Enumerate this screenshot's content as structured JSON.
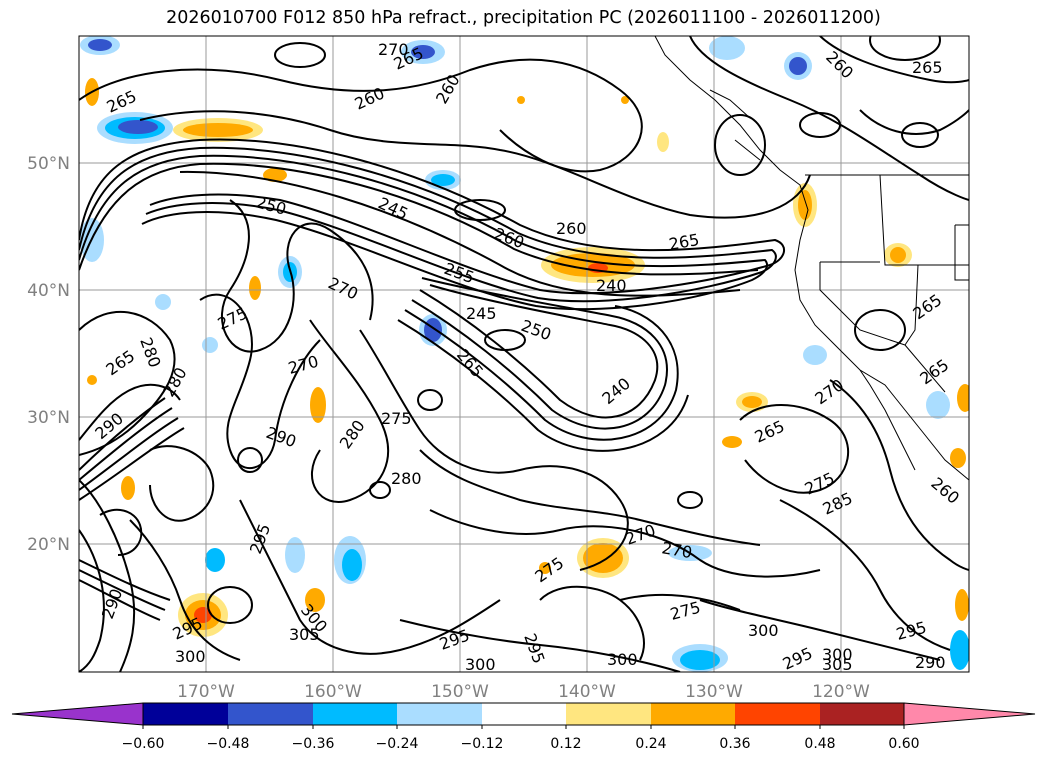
{
  "title": "2026010700 F012 850 hPa refract., precipitation PC (2026011100 - 2026011200)",
  "lat_labels": [
    "50°N",
    "40°N",
    "30°N",
    "20°N"
  ],
  "lon_labels": [
    "170°W",
    "160°W",
    "150°W",
    "140°W",
    "130°W",
    "120°W"
  ],
  "colorbar": {
    "ticks": [
      "−0.60",
      "−0.48",
      "−0.36",
      "−0.24",
      "−0.12",
      "0.12",
      "0.24",
      "0.36",
      "0.48",
      "0.60"
    ],
    "colors": [
      "#9933cc",
      "#000099",
      "#3355cc",
      "#00bbff",
      "#aaddff",
      "#ffffff",
      "#ffe680",
      "#ffaa00",
      "#ff4400",
      "#aa2222",
      "#ff88aa"
    ]
  },
  "contour_labels": {
    "c1": "270",
    "c2": "265",
    "c3": "260",
    "c4": "260",
    "c5": "265",
    "c6": "260",
    "c7": "265",
    "c8": "250",
    "c9": "245",
    "c10": "260",
    "c11": "260",
    "c12": "265",
    "c13": "255",
    "c14": "240",
    "c15": "270",
    "c16": "275",
    "c17": "245",
    "c18": "250",
    "c19": "265",
    "c20": "265",
    "c21": "280",
    "c22": "265",
    "c23": "270",
    "c24": "240",
    "c25": "275",
    "c26": "280",
    "c27": "270",
    "c28": "265",
    "c29": "265",
    "c30": "290",
    "c31": "280",
    "c32": "280",
    "c33": "290",
    "c34": "275",
    "c35": "285",
    "c36": "260",
    "c37": "295",
    "c38": "270",
    "c39": "270",
    "c40": "275",
    "c41": "275",
    "c42": "295",
    "c43": "300",
    "c44": "295",
    "c45": "300",
    "c46": "300",
    "c47": "300",
    "c48": "295",
    "c49": "300",
    "c50": "305",
    "c51": "295",
    "c52": "290",
    "c53": "305",
    "c54": "295",
    "c55": "300",
    "c56": "290"
  }
}
